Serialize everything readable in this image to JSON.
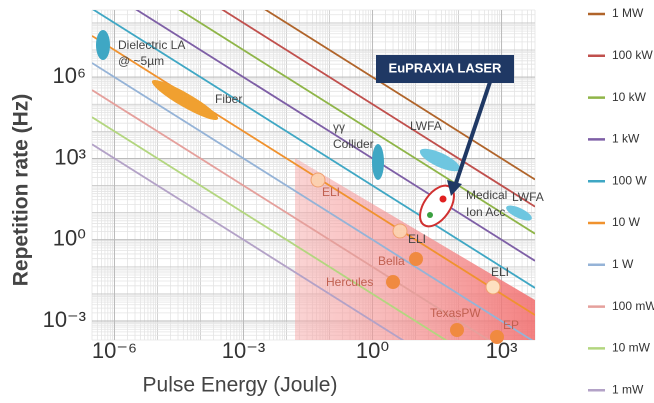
{
  "chart_data": {
    "type": "power-lines",
    "xlabel": "Pulse Energy (Joule)",
    "ylabel": "Repetition rate (Hz)",
    "xscale": "log",
    "yscale": "log",
    "grid": true,
    "legend": "right",
    "xlim": [
      3e-07,
      6000
    ],
    "ylim": [
      0.0002,
      300000000
    ],
    "xticks": [
      {
        "value": 1e-06,
        "label": "10⁻⁶"
      },
      {
        "value": 0.001,
        "label": "10⁻³"
      },
      {
        "value": 1,
        "label": "10⁰"
      },
      {
        "value": 1000,
        "label": "10³"
      }
    ],
    "yticks": [
      {
        "value": 0.001,
        "label": "10⁻³"
      },
      {
        "value": 1,
        "label": "10⁰"
      },
      {
        "value": 1000,
        "label": "10³"
      },
      {
        "value": 1000000,
        "label": "10⁶"
      }
    ],
    "series": [
      {
        "name": "1 MW",
        "color": "#b0642a",
        "value": 1000000
      },
      {
        "name": "100 kW",
        "color": "#c0504d",
        "value": 100000
      },
      {
        "name": "10 kW",
        "color": "#8fb548",
        "value": 10000
      },
      {
        "name": "1 kW",
        "color": "#7e5fa6",
        "value": 1000
      },
      {
        "name": "100 W",
        "color": "#3fa7c4",
        "value": 100
      },
      {
        "name": "10 W",
        "color": "#f0922e",
        "value": 10
      },
      {
        "name": "1 W",
        "color": "#95b3d7",
        "value": 1
      },
      {
        "name": "100 mW",
        "color": "#e5a09c",
        "value": 0.1
      },
      {
        "name": "10 mW",
        "color": "#b3d67f",
        "value": 0.01
      },
      {
        "name": "1 mW",
        "color": "#b3a2c7",
        "value": 0.001
      }
    ],
    "annotations": [
      "Dielectric LA",
      "@ ~5µm",
      "Fiber",
      "γγ",
      "Collider",
      "LWFA",
      "Medical",
      "Ion Acc",
      "LWFA",
      "ELI",
      "ELI",
      "Bella",
      "Hercules",
      "ELI",
      "TexasPW",
      "EP",
      "EuPRAXIA LASER"
    ]
  }
}
